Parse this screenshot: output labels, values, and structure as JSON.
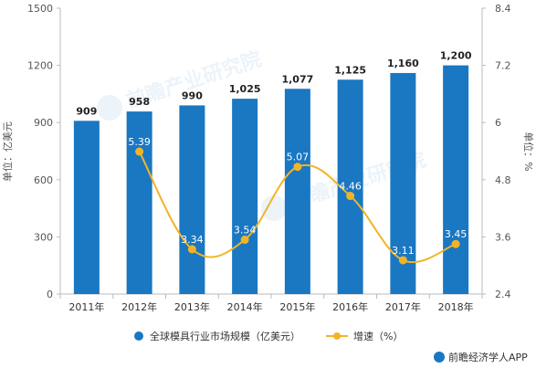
{
  "chart_data": {
    "type": "bar+line",
    "categories": [
      "2011年",
      "2012年",
      "2013年",
      "2014年",
      "2015年",
      "2016年",
      "2017年",
      "2018年"
    ],
    "series": [
      {
        "name": "全球模具行业市场规模（亿美元）",
        "type": "bar",
        "axis": "left",
        "values": [
          909,
          958,
          990,
          1025,
          1077,
          1125,
          1160,
          1200
        ],
        "labels": [
          "909",
          "958",
          "990",
          "1,025",
          "1,077",
          "1,125",
          "1,160",
          "1,200"
        ],
        "color": "#1a77c2"
      },
      {
        "name": "增速（%）",
        "type": "line",
        "axis": "right",
        "values": [
          null,
          5.39,
          3.34,
          3.54,
          5.07,
          4.46,
          3.11,
          3.45
        ],
        "labels": [
          "",
          "5.39",
          "3.34",
          "3.54",
          "5.07",
          "4.46",
          "3.11",
          "3.45"
        ],
        "color": "#f2b427"
      }
    ],
    "y_left": {
      "label": "单位：亿美元",
      "range": [
        0,
        1500
      ],
      "ticks": [
        "0",
        "300",
        "600",
        "900",
        "1200",
        "1500"
      ],
      "tick_values": [
        0,
        300,
        600,
        900,
        1200,
        1500
      ]
    },
    "y_right": {
      "label": "单位：%",
      "range": [
        2.4,
        8.4
      ],
      "ticks": [
        "2.4",
        "3.6",
        "4.8",
        "6",
        "7.2",
        "8.4"
      ],
      "tick_values": [
        2.4,
        3.6,
        4.8,
        6,
        7.2,
        8.4
      ]
    },
    "grid": false,
    "legend_position": "bottom"
  },
  "source": "前瞻经济学人APP",
  "watermark": "前瞻产业研究院",
  "colors": {
    "bar": "#1a77c2",
    "line": "#f2b427",
    "axis": "#bbbbbb"
  }
}
